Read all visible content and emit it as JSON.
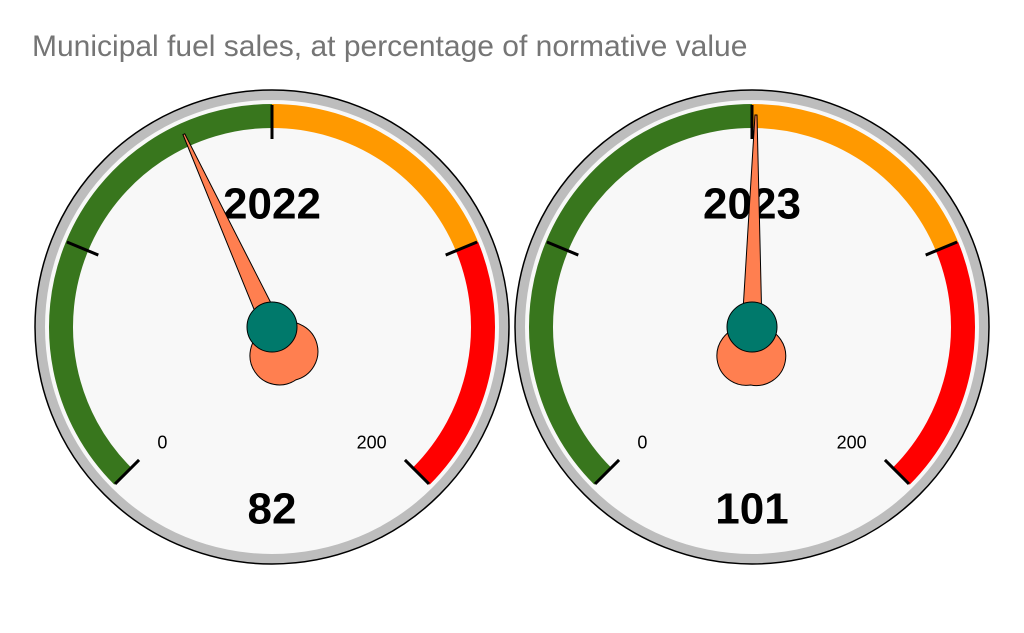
{
  "title": "Municipal fuel sales, at percentage of normative value",
  "chart_data": [
    {
      "type": "gauge",
      "title": "2022",
      "value": 82,
      "range": [
        0,
        200
      ],
      "ticks": [
        0,
        50,
        100,
        150,
        200
      ],
      "tick_labels": [
        0,
        200
      ],
      "bands": [
        {
          "from": 0,
          "to": 100,
          "color": "#38761d"
        },
        {
          "from": 100,
          "to": 150,
          "color": "#ff9900"
        },
        {
          "from": 150,
          "to": 200,
          "color": "#ff0000"
        }
      ],
      "needle_color": "#ff7f50",
      "hub_color": "#00796b"
    },
    {
      "type": "gauge",
      "title": "2023",
      "value": 101,
      "range": [
        0,
        200
      ],
      "ticks": [
        0,
        50,
        100,
        150,
        200
      ],
      "tick_labels": [
        0,
        200
      ],
      "bands": [
        {
          "from": 0,
          "to": 100,
          "color": "#38761d"
        },
        {
          "from": 100,
          "to": 150,
          "color": "#ff9900"
        },
        {
          "from": 150,
          "to": 200,
          "color": "#ff0000"
        }
      ],
      "needle_color": "#ff7f50",
      "hub_color": "#00796b"
    }
  ]
}
